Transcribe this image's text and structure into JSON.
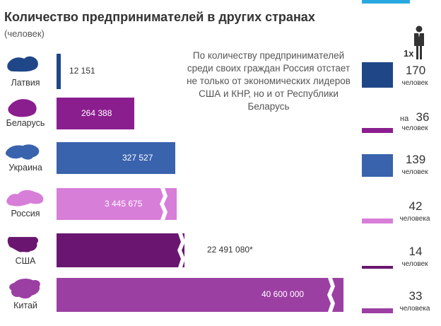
{
  "header": {
    "title": "Количество предпринимателей в других странах",
    "subtitle": "(человек)"
  },
  "note": "По количеству предпринимателей среди своих граждан Россия отстает не только от экономических лидеров США и КНР, но и от Республики Беларусь",
  "legend": {
    "multiplier": "1х",
    "icon": "person-icon"
  },
  "chart_data": {
    "type": "bar",
    "orientation": "horizontal",
    "categories": [
      "Латвия",
      "Беларусь",
      "Украина",
      "Россия",
      "США",
      "Китай"
    ],
    "series": [
      {
        "values": [
          12151,
          264388,
          327527,
          3445675,
          22491080,
          40600000
        ]
      }
    ],
    "value_labels": [
      "12 151",
      "264 388",
      "327 527",
      "3 445 675",
      "22 491 080*",
      "40 600 000"
    ],
    "broken_bars": [
      "Россия",
      "США",
      "Китай"
    ],
    "colors": [
      "#1f4788",
      "#8b1e8f",
      "#3a63ad",
      "#d77ed9",
      "#6a1670",
      "#9c3fa3"
    ],
    "ratio_per_entrepreneur": {
      "numbers": [
        "170",
        "на 36",
        "139",
        "42",
        "14",
        "33"
      ],
      "units": [
        "человек",
        "человек",
        "человек",
        "человека",
        "человек",
        "человека"
      ]
    }
  }
}
